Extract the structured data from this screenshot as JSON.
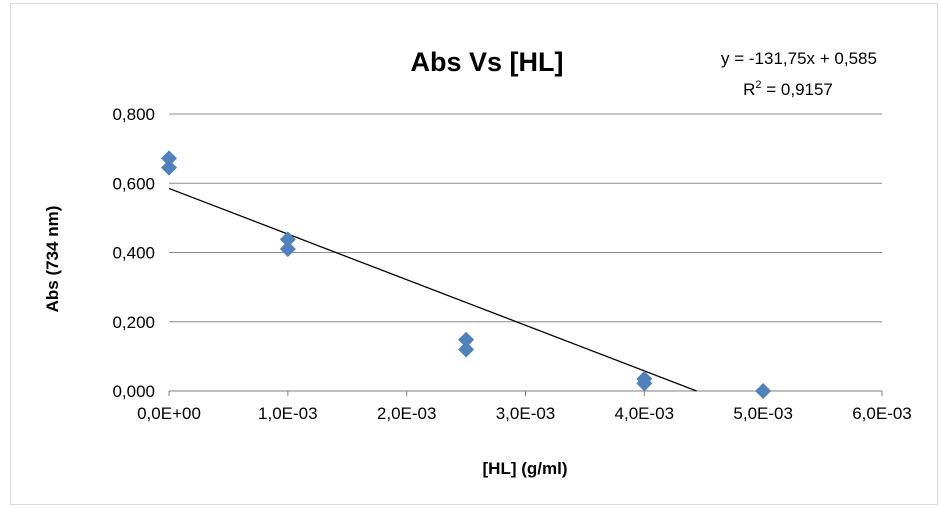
{
  "chart_data": {
    "type": "scatter",
    "title": "Abs Vs [HL]",
    "xlabel": "[HL] (g/ml)",
    "ylabel": "Abs (734 nm)",
    "xlim": [
      0,
      0.006
    ],
    "ylim": [
      0,
      0.8
    ],
    "x_ticks": [
      0,
      0.001,
      0.002,
      0.003,
      0.004,
      0.005,
      0.006
    ],
    "x_tick_labels": [
      "0,0E+00",
      "1,0E-03",
      "2,0E-03",
      "3,0E-03",
      "4,0E-03",
      "5,0E-03",
      "6,0E-03"
    ],
    "y_ticks": [
      0,
      0.2,
      0.4,
      0.6,
      0.8
    ],
    "y_tick_labels": [
      "0,000",
      "0,200",
      "0,400",
      "0,600",
      "0,800"
    ],
    "grid": "horizontal",
    "marker": "diamond",
    "series": [
      {
        "color": "#4f81bd",
        "points": [
          {
            "x": 0.0,
            "y": 0.672
          },
          {
            "x": 0.0,
            "y": 0.645
          },
          {
            "x": 0.001,
            "y": 0.438
          },
          {
            "x": 0.001,
            "y": 0.41
          },
          {
            "x": 0.0025,
            "y": 0.148
          },
          {
            "x": 0.0025,
            "y": 0.12
          },
          {
            "x": 0.004,
            "y": 0.035
          },
          {
            "x": 0.004,
            "y": 0.022
          },
          {
            "x": 0.005,
            "y": 0.0
          }
        ]
      }
    ],
    "trendline": {
      "type": "linear",
      "slope": -131.75,
      "intercept": 0.585,
      "color": "#000000",
      "equation_label": "y = -131,75x + 0,585",
      "r2_prefix": "R",
      "r2_exponent": "2",
      "r2_value_text": " = 0,9157"
    }
  }
}
